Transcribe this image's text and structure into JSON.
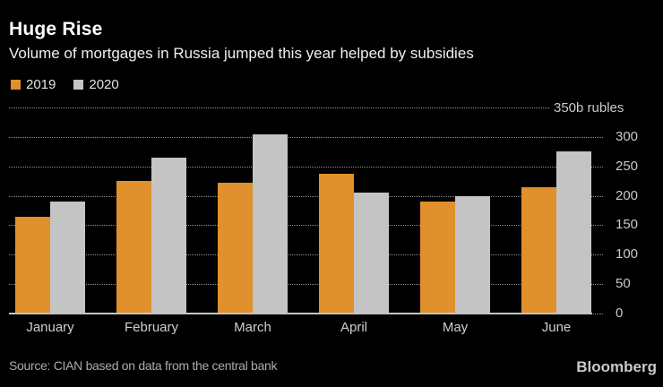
{
  "header": {
    "title": "Huge Rise",
    "subtitle": "Volume of mortgages in Russia jumped this year helped by subsidies"
  },
  "colors": {
    "background": "#000000",
    "series_2019": "#e0902c",
    "series_2020": "#c4c4c4",
    "gridline": "#8f8f8f",
    "axis_text": "#c9c9c9"
  },
  "chart_data": {
    "type": "bar",
    "categories": [
      "January",
      "February",
      "March",
      "April",
      "May",
      "June"
    ],
    "series": [
      {
        "name": "2019",
        "color": "#e0902c",
        "values": [
          165,
          225,
          222,
          238,
          190,
          215
        ]
      },
      {
        "name": "2020",
        "color": "#c4c4c4",
        "values": [
          190,
          265,
          305,
          205,
          200,
          275
        ]
      }
    ],
    "title": "Huge Rise",
    "subtitle": "Volume of mortgages in Russia jumped this year helped by subsidies",
    "xlabel": "",
    "ylabel": "b rubles",
    "ylim": [
      0,
      350
    ],
    "yticks": [
      0,
      50,
      100,
      150,
      200,
      250,
      300
    ],
    "ytick_labels": [
      "0",
      "50",
      "100",
      "150",
      "200",
      "250",
      "300"
    ],
    "top_axis_label": "350b rubles",
    "grid": "horizontal dotted lines, labels on right",
    "legend_position": "top-left"
  },
  "footer": {
    "source": "Source: CIAN based on data from the central bank",
    "logo": "Bloomberg"
  }
}
